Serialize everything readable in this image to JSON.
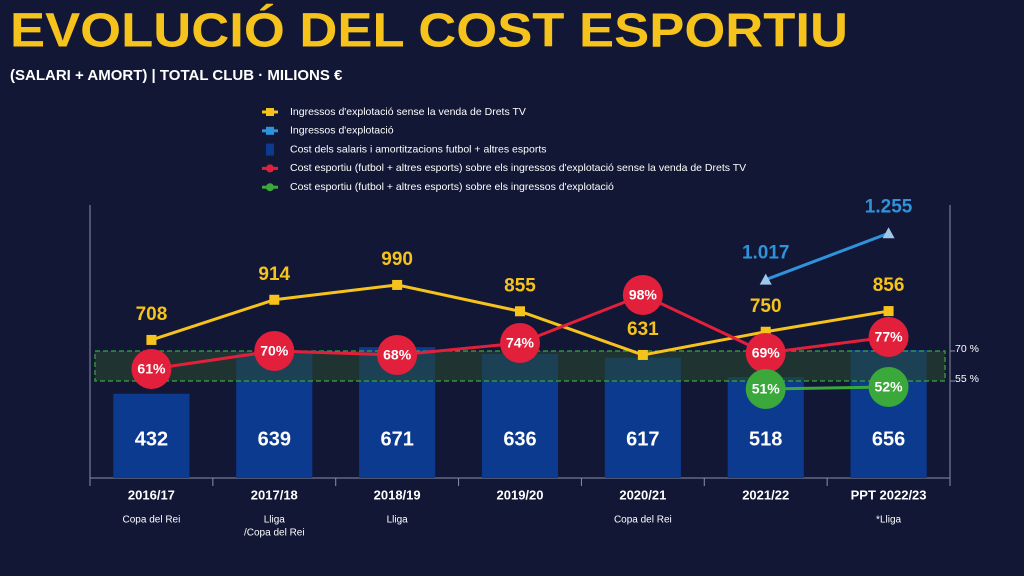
{
  "chart_data": {
    "type": "bar-line",
    "title": "EVOLUCIÓ DEL COST ESPORTIU",
    "subtitle": "(SALARI + AMORT) | TOTAL CLUB · MILIONS €",
    "categories": [
      "2016/17",
      "2017/18",
      "2018/19",
      "2019/20",
      "2020/21",
      "2021/22",
      "PPT 2022/23"
    ],
    "sublabels": [
      [
        "Copa del Rei"
      ],
      [
        "Lliga",
        "/Copa del Rei"
      ],
      [
        "Lliga"
      ],
      [],
      [
        "Copa del Rei"
      ],
      [],
      [
        "*Lliga"
      ]
    ],
    "series": [
      {
        "name": "Ingressos d'explotació sense la venda de Drets TV",
        "kind": "line",
        "marker": "square",
        "color": "#f6c21c",
        "values": [
          708,
          914,
          990,
          855,
          631,
          750,
          856
        ]
      },
      {
        "name": "Ingressos d'explotació",
        "kind": "line",
        "marker": "triangle",
        "color": "#2f93dc",
        "values": [
          null,
          null,
          null,
          null,
          null,
          1017,
          1255
        ],
        "value_labels": [
          null,
          null,
          null,
          null,
          null,
          "1.017",
          "1.255"
        ]
      },
      {
        "name": "Cost dels salaris i amortitzacions futbol + altres esports",
        "kind": "bar",
        "color": "#0c3a8e",
        "values": [
          432,
          639,
          671,
          636,
          617,
          518,
          656
        ]
      },
      {
        "name": "Cost esportiu (futbol  + altres esports) sobre els ingressos d'explotació sense la venda de Drets TV",
        "kind": "line",
        "marker": "circle",
        "axis": "y2",
        "color": "#e3203b",
        "values": [
          61,
          70,
          68,
          74,
          98,
          69,
          77
        ],
        "value_labels": [
          "61%",
          "70%",
          "68%",
          "74%",
          "98%",
          "69%",
          "77%"
        ]
      },
      {
        "name": "Cost esportiu (futbol  + altres esports) sobre els ingressos d'explotació",
        "kind": "line",
        "marker": "circle",
        "axis": "y2",
        "color": "#3aa83a",
        "values": [
          null,
          null,
          null,
          null,
          null,
          51,
          52
        ],
        "value_labels": [
          null,
          null,
          null,
          null,
          null,
          "51%",
          "52%"
        ]
      }
    ],
    "ylim": [
      0,
      1400
    ],
    "y2lim": [
      6.5,
      143
    ],
    "y2ticks": [
      {
        "value": 70,
        "label": "70 %"
      },
      {
        "value": 55,
        "label": "55 %"
      }
    ],
    "band": [
      55,
      70
    ]
  }
}
